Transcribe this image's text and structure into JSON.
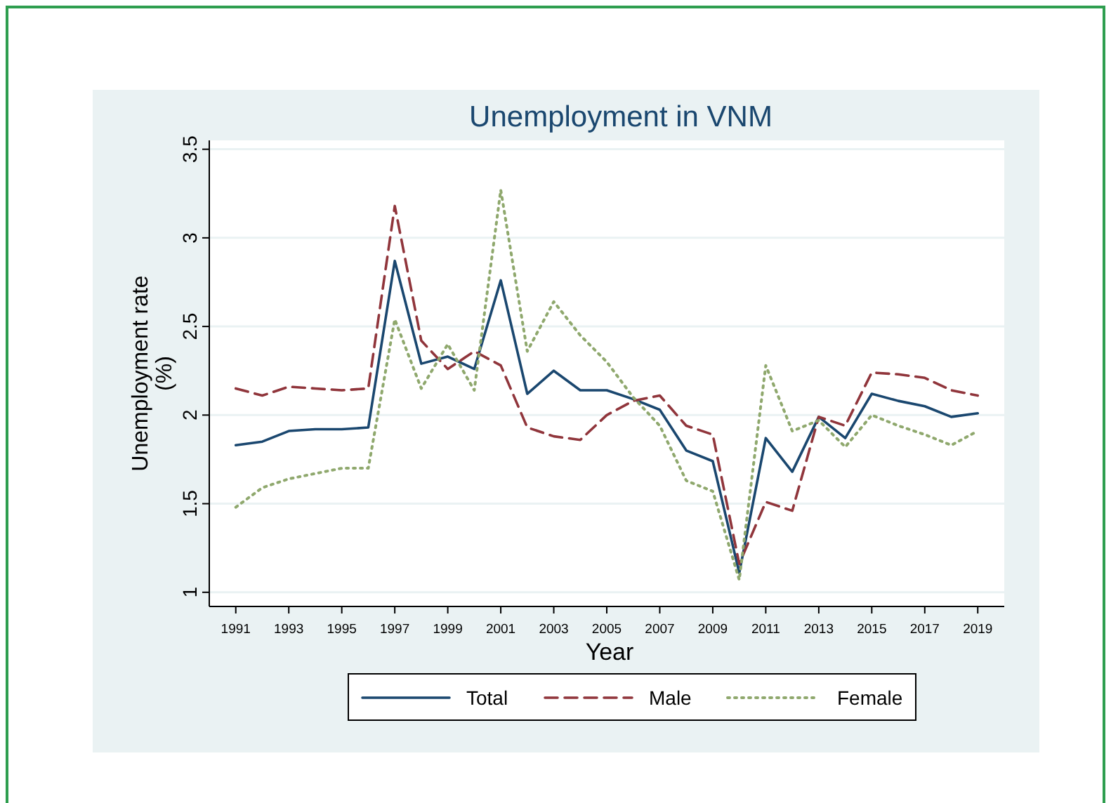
{
  "chart_data": {
    "type": "line",
    "title": "Unemployment in VNM",
    "xlabel": "Year",
    "ylabel": "Unemployment rate (%)",
    "x": [
      1991,
      1992,
      1993,
      1994,
      1995,
      1996,
      1997,
      1998,
      1999,
      2000,
      2001,
      2002,
      2003,
      2004,
      2005,
      2006,
      2007,
      2008,
      2009,
      2010,
      2011,
      2012,
      2013,
      2014,
      2015,
      2016,
      2017,
      2018,
      2019
    ],
    "xlim": [
      1990,
      2020
    ],
    "xticks": [
      1991,
      1993,
      1995,
      1997,
      1999,
      2001,
      2003,
      2005,
      2007,
      2009,
      2011,
      2013,
      2015,
      2017,
      2019
    ],
    "ylim": [
      0.92,
      3.55
    ],
    "yticks": [
      1,
      1.5,
      2,
      2.5,
      3,
      3.5
    ],
    "grid": "y",
    "legend": "bottom",
    "marker": "none",
    "series": [
      {
        "name": "Total",
        "color": "#1a476f",
        "line_style": "solid",
        "values": [
          1.83,
          1.85,
          1.91,
          1.92,
          1.92,
          1.93,
          2.87,
          2.29,
          2.33,
          2.26,
          2.76,
          2.12,
          2.25,
          2.14,
          2.14,
          2.09,
          2.03,
          1.8,
          1.74,
          1.11,
          1.87,
          1.68,
          1.99,
          1.87,
          2.12,
          2.08,
          2.05,
          1.99,
          2.01
        ]
      },
      {
        "name": "Male",
        "color": "#90353b",
        "line_style": "dashed",
        "values": [
          2.15,
          2.11,
          2.16,
          2.15,
          2.14,
          2.15,
          3.18,
          2.42,
          2.26,
          2.36,
          2.28,
          1.93,
          1.88,
          1.86,
          2.0,
          2.08,
          2.11,
          1.94,
          1.89,
          1.16,
          1.51,
          1.46,
          1.99,
          1.94,
          2.24,
          2.23,
          2.21,
          2.14,
          2.11
        ]
      },
      {
        "name": "Female",
        "color": "#8fa86d",
        "line_style": "dotted",
        "values": [
          1.48,
          1.59,
          1.64,
          1.67,
          1.7,
          1.7,
          2.54,
          2.15,
          2.4,
          2.14,
          3.27,
          2.36,
          2.64,
          2.45,
          2.3,
          2.1,
          1.94,
          1.63,
          1.57,
          1.07,
          2.28,
          1.91,
          1.97,
          1.82,
          2.0,
          1.94,
          1.89,
          1.83,
          1.91
        ]
      }
    ]
  }
}
